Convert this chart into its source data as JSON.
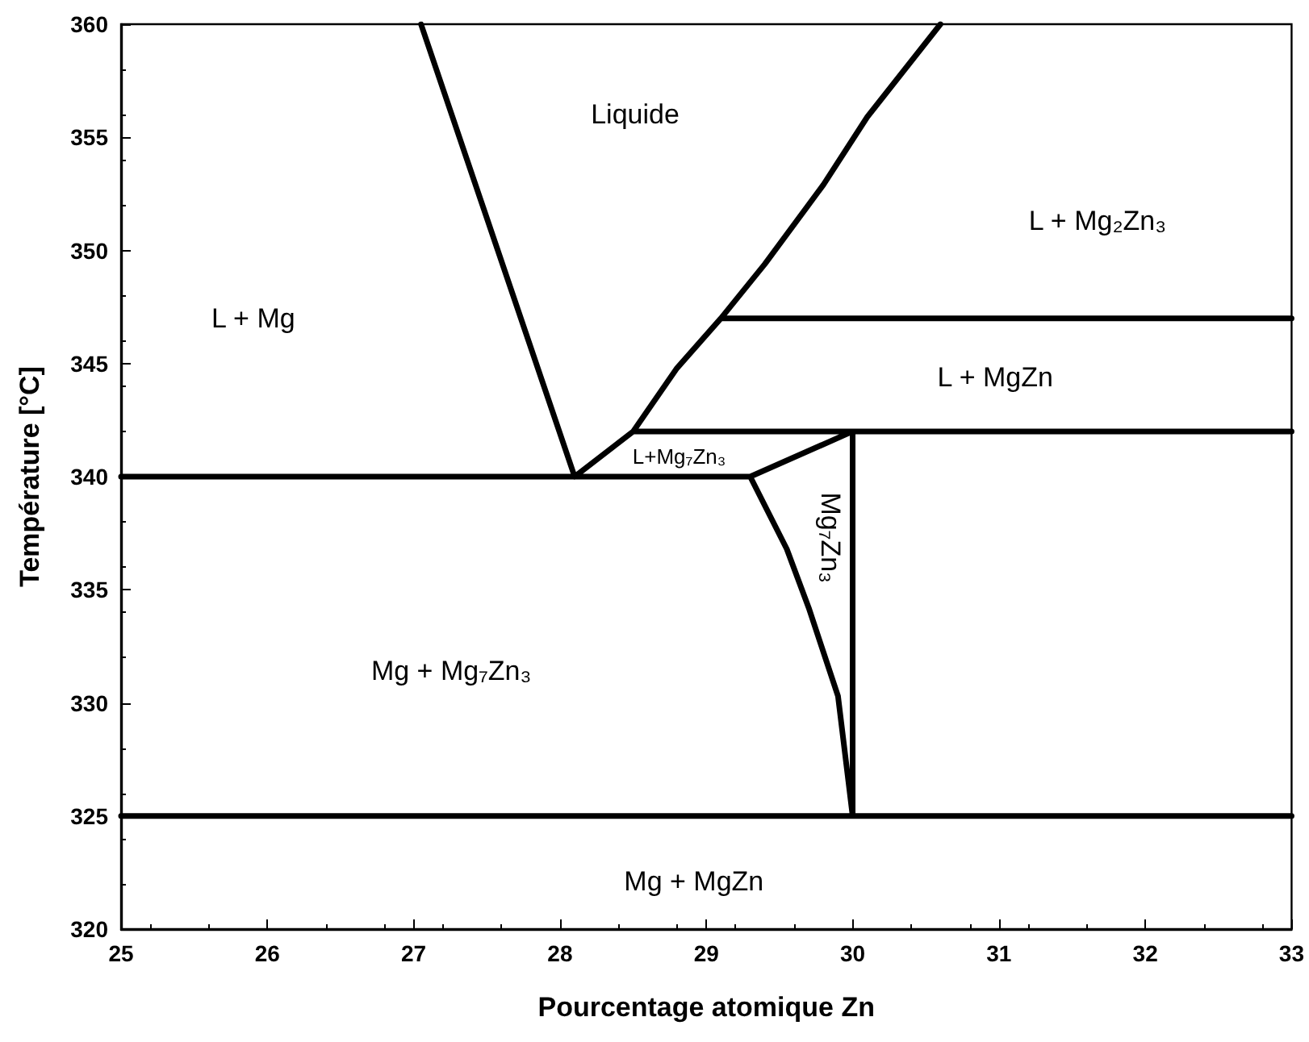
{
  "chart_data": {
    "type": "line",
    "xlabel": "Pourcentage atomique Zn",
    "ylabel": "Température [°C]",
    "xlim": [
      25,
      33
    ],
    "xticks": [
      25,
      26,
      27,
      28,
      29,
      30,
      31,
      32,
      33
    ],
    "ylim": [
      320,
      360
    ],
    "yticks": [
      320,
      325,
      330,
      335,
      340,
      345,
      350,
      355,
      360
    ],
    "grid": false,
    "marker": "none",
    "series": [
      {
        "color": "#000000",
        "x": [
          30.6,
          30.1,
          29.8,
          29.4,
          29.1,
          33,
          29.1,
          28.8,
          28.5,
          28.1,
          27.05,
          28.1,
          25,
          29.3,
          30,
          28.5,
          33,
          30,
          30,
          29.9,
          29.7,
          29.55,
          29.3,
          29.55,
          29.7,
          29.9,
          30,
          25,
          33
        ],
        "values": [
          360,
          355.9,
          352.9,
          349.4,
          347,
          347,
          347,
          344.8,
          342,
          340,
          360,
          340,
          340,
          340,
          342,
          342,
          342,
          342,
          325,
          330.3,
          334.2,
          336.8,
          340,
          336.8,
          334.2,
          330.3,
          325,
          325,
          325
        ]
      }
    ],
    "annotations": [
      "Liquide",
      "L + Mg",
      "L + Mg₂Zn₃",
      "L + MgZn",
      "L+Mg₇Zn₃",
      "Mg₇Zn₃",
      "Mg + Mg₇Zn₃",
      "Mg + MgZn"
    ]
  }
}
